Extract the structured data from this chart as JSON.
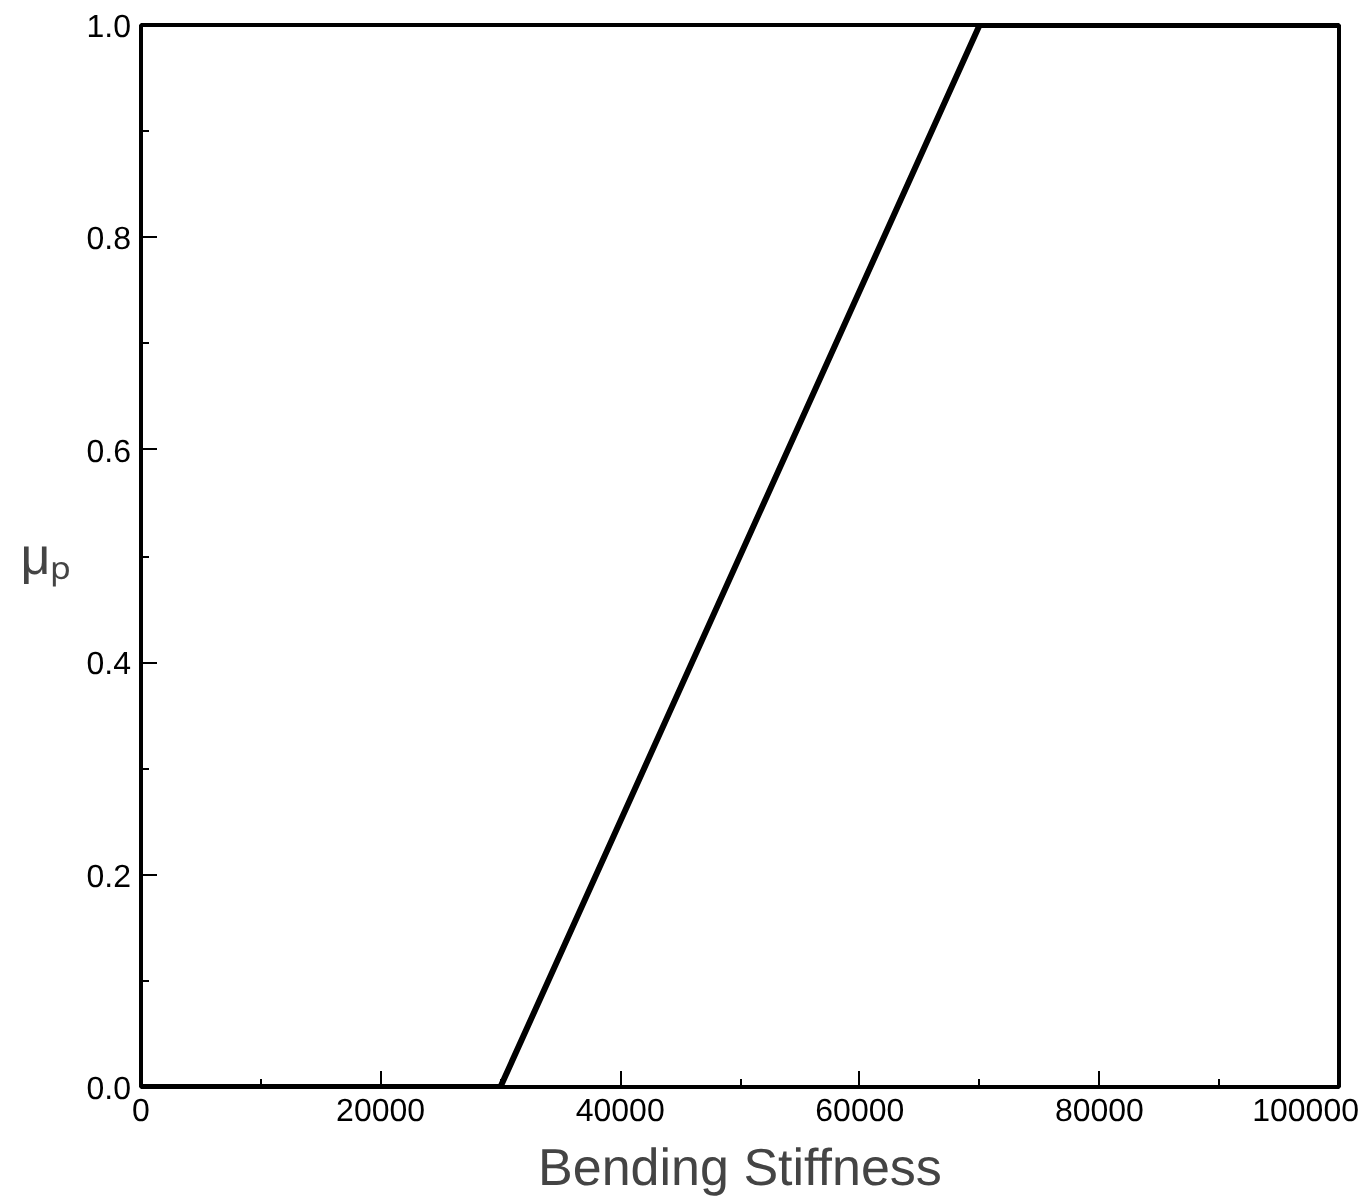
{
  "chart_data": {
    "type": "line",
    "xlabel": "Bending Stiffness",
    "ylabel": "μₚ",
    "x": [
      0,
      30000,
      70000,
      100000
    ],
    "series": [
      {
        "color": "#000000",
        "values": [
          0,
          0,
          1,
          1
        ]
      }
    ],
    "xlim": [
      0,
      100000
    ],
    "xticks": [
      0,
      20000,
      40000,
      60000,
      80000,
      100000
    ],
    "ylim": [
      0,
      1
    ],
    "yticks": [
      {
        "value": 0,
        "label": "0.0"
      },
      {
        "value": 0.2,
        "label": "0.2"
      },
      {
        "value": 0.4,
        "label": "0.4"
      },
      {
        "value": 0.6,
        "label": "0.6"
      },
      {
        "value": 0.8,
        "label": "0.8"
      },
      {
        "value": 1,
        "label": "1.0"
      }
    ],
    "grid": false,
    "marker": "none",
    "line_style": "solid"
  }
}
